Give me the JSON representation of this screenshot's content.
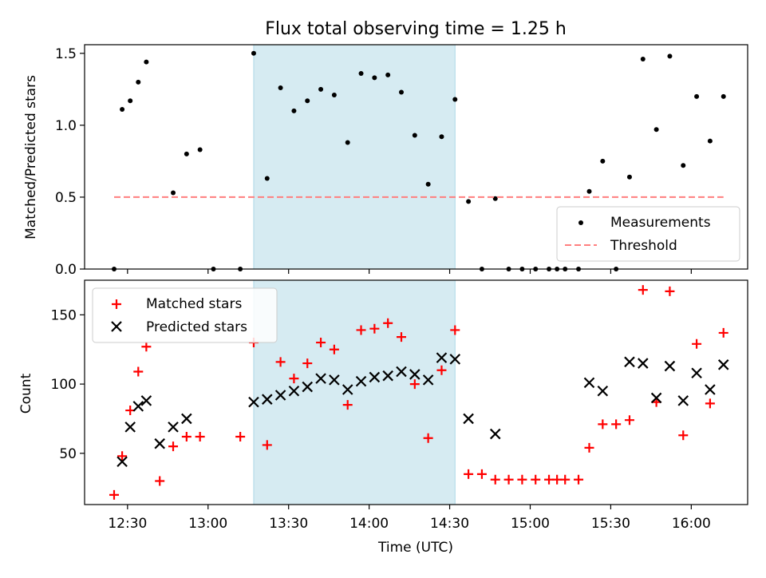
{
  "chart_data": [
    {
      "type": "scatter",
      "title": "Flux total observing time = 1.25 h",
      "xlabel": "",
      "ylabel": "Matched/Predicted stars",
      "xlim": [
        "12:14",
        "16:21"
      ],
      "ylim": [
        0,
        1.56
      ],
      "yticks": [
        0.0,
        0.5,
        1.0,
        1.5
      ],
      "ytick_labels": [
        "0.0",
        "0.5",
        "1.0",
        "1.5"
      ],
      "shaded_span": [
        "13:17",
        "14:32"
      ],
      "legend_position": "lower-right",
      "series": [
        {
          "name": "Measurements",
          "marker": "dot",
          "color": "#000000",
          "x": [
            "12:25",
            "12:28",
            "12:31",
            "12:34",
            "12:37",
            "12:47",
            "12:52",
            "12:57",
            "13:02",
            "13:12",
            "13:17",
            "13:22",
            "13:27",
            "13:32",
            "13:37",
            "13:42",
            "13:47",
            "13:52",
            "13:57",
            "14:02",
            "14:07",
            "14:12",
            "14:17",
            "14:22",
            "14:27",
            "14:32",
            "14:37",
            "14:42",
            "14:47",
            "14:52",
            "14:57",
            "15:02",
            "15:07",
            "15:10",
            "15:13",
            "15:18",
            "15:22",
            "15:27",
            "15:32",
            "15:37",
            "15:42",
            "15:47",
            "15:52",
            "15:57",
            "16:02",
            "16:07",
            "16:12"
          ],
          "values": [
            0.0,
            1.11,
            1.17,
            1.3,
            1.44,
            0.53,
            0.8,
            0.83,
            0.0,
            0.0,
            1.5,
            0.63,
            1.26,
            1.1,
            1.17,
            1.25,
            1.21,
            0.88,
            1.36,
            1.33,
            1.35,
            1.23,
            0.93,
            0.59,
            0.92,
            1.18,
            0.47,
            0.0,
            0.49,
            0.0,
            0.0,
            0.0,
            0.0,
            0.0,
            0.0,
            0.0,
            0.54,
            0.75,
            0.0,
            0.64,
            1.46,
            0.97,
            1.48,
            0.72,
            1.2,
            0.89,
            1.2
          ]
        },
        {
          "name": "Threshold",
          "style": "dashed",
          "color": "#ff7f7f",
          "x": [
            "12:25",
            "16:12"
          ],
          "values": [
            0.5,
            0.5
          ]
        }
      ]
    },
    {
      "type": "scatter",
      "title": "",
      "xlabel": "Time (UTC)",
      "ylabel": "Count",
      "xlim": [
        "12:14",
        "16:21"
      ],
      "ylim": [
        13,
        175
      ],
      "yticks": [
        50,
        100,
        150
      ],
      "ytick_labels": [
        "50",
        "100",
        "150"
      ],
      "xtick_labels": [
        "12:30",
        "13:00",
        "13:30",
        "14:00",
        "14:30",
        "15:00",
        "15:30",
        "16:00"
      ],
      "shaded_span": [
        "13:17",
        "14:32"
      ],
      "legend_position": "upper-left",
      "series": [
        {
          "name": "Matched stars",
          "marker": "plus",
          "color": "#ff0000",
          "x": [
            "12:25",
            "12:28",
            "12:31",
            "12:34",
            "12:37",
            "12:42",
            "12:47",
            "12:52",
            "12:57",
            "13:12",
            "13:17",
            "13:22",
            "13:27",
            "13:32",
            "13:37",
            "13:42",
            "13:47",
            "13:52",
            "13:57",
            "14:02",
            "14:07",
            "14:12",
            "14:17",
            "14:22",
            "14:27",
            "14:32",
            "14:37",
            "14:42",
            "14:47",
            "14:52",
            "14:57",
            "15:02",
            "15:07",
            "15:10",
            "15:13",
            "15:18",
            "15:22",
            "15:27",
            "15:32",
            "15:37",
            "15:42",
            "15:47",
            "15:52",
            "15:57",
            "16:02",
            "16:07",
            "16:12"
          ],
          "values": [
            20,
            48,
            81,
            109,
            127,
            30,
            55,
            62,
            62,
            62,
            130,
            56,
            116,
            104,
            115,
            130,
            125,
            85,
            139,
            140,
            144,
            134,
            100,
            61,
            110,
            139,
            35,
            35,
            31,
            31,
            31,
            31,
            31,
            31,
            31,
            31,
            54,
            71,
            71,
            74,
            168,
            87,
            167,
            63,
            129,
            86,
            137
          ]
        },
        {
          "name": "Predicted stars",
          "marker": "x",
          "color": "#000000",
          "x": [
            "12:28",
            "12:31",
            "12:34",
            "12:37",
            "12:42",
            "12:47",
            "12:52",
            "13:17",
            "13:22",
            "13:27",
            "13:32",
            "13:37",
            "13:42",
            "13:47",
            "13:52",
            "13:57",
            "14:02",
            "14:07",
            "14:12",
            "14:17",
            "14:22",
            "14:27",
            "14:32",
            "14:37",
            "14:47",
            "15:22",
            "15:27",
            "15:37",
            "15:42",
            "15:47",
            "15:52",
            "15:57",
            "16:02",
            "16:07",
            "16:12"
          ],
          "values": [
            44,
            69,
            84,
            88,
            57,
            69,
            75,
            87,
            89,
            92,
            95,
            98,
            104,
            103,
            96,
            102,
            105,
            106,
            109,
            107,
            103,
            119,
            118,
            75,
            64,
            101,
            95,
            116,
            115,
            90,
            113,
            88,
            108,
            96,
            114
          ]
        }
      ]
    }
  ]
}
